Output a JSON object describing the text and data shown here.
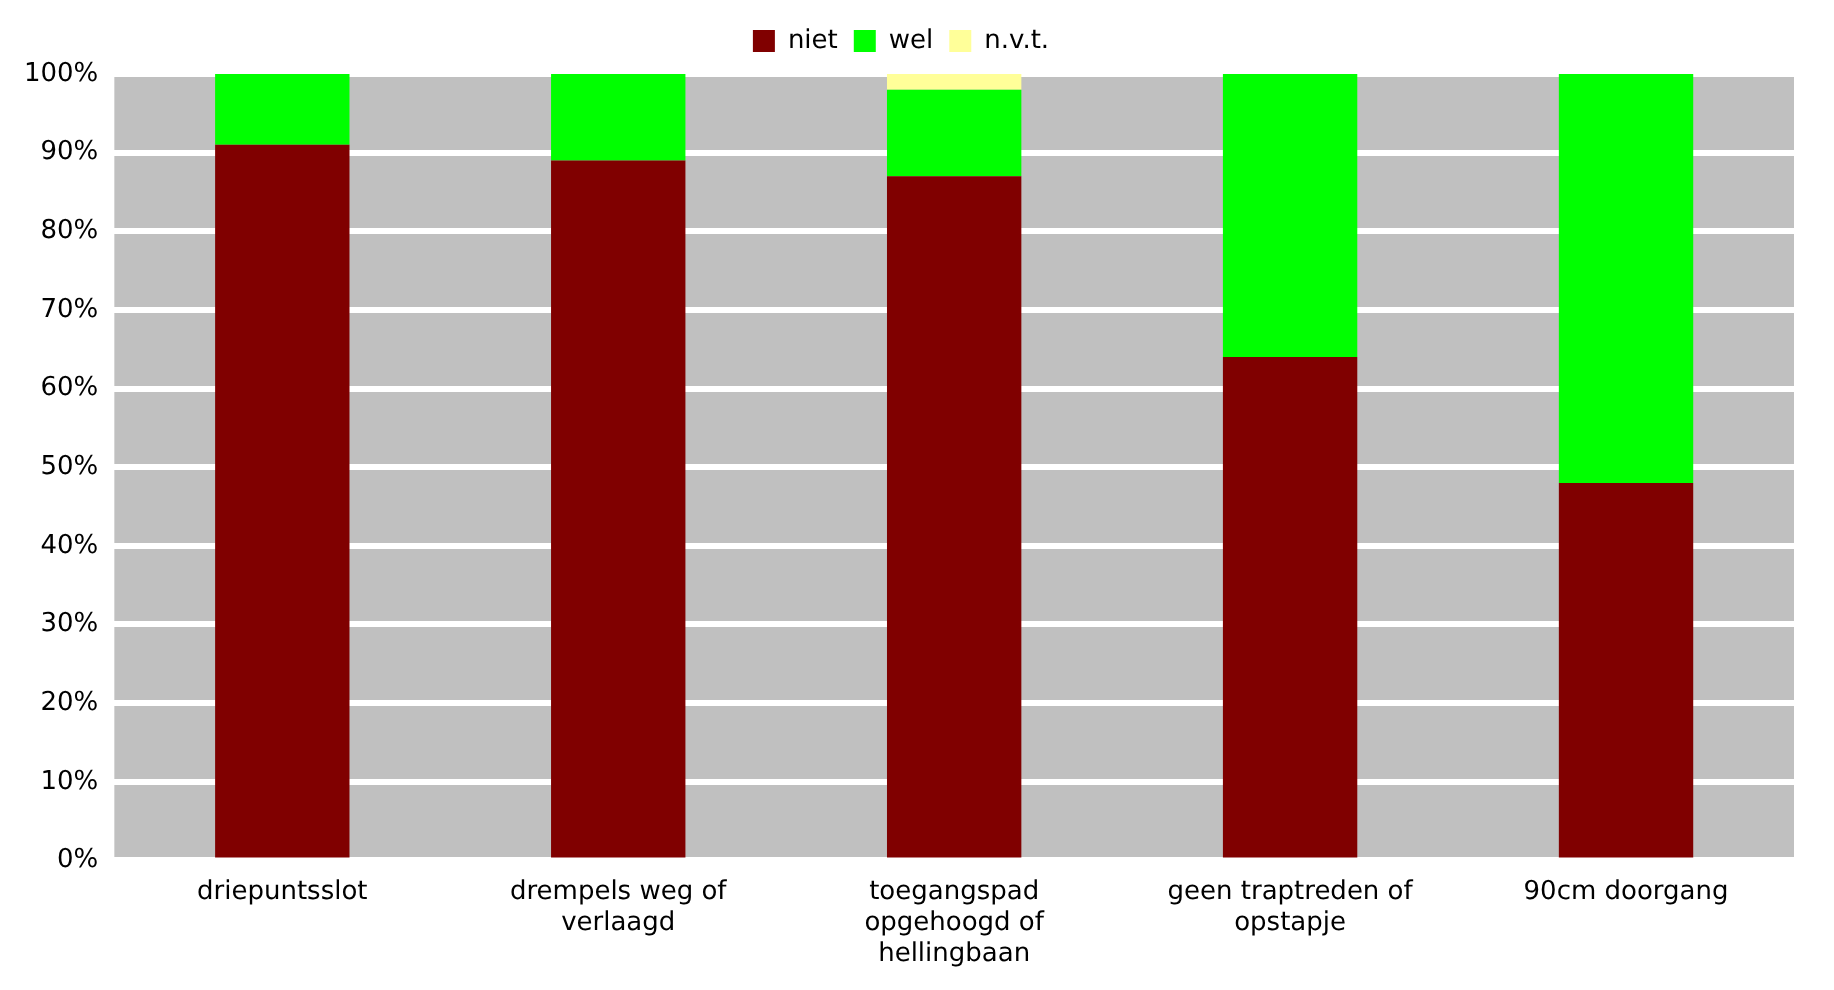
{
  "chart_data": {
    "type": "bar",
    "stacked": true,
    "categories": [
      "driepuntsslot",
      "drempels weg of verlaagd",
      "toegangspad opgehoogd of hellingbaan",
      "geen traptreden of opstapje",
      "90cm doorgang"
    ],
    "series": [
      {
        "name": "niet",
        "color": "#800000",
        "values": [
          91,
          89,
          87,
          64,
          48
        ]
      },
      {
        "name": "wel",
        "color": "#00ff00",
        "values": [
          9,
          11,
          11,
          36,
          52
        ]
      },
      {
        "name": "n.v.t.",
        "color": "#ffff99",
        "values": [
          0,
          0,
          2,
          0,
          0
        ]
      }
    ],
    "ylim": [
      0,
      100
    ],
    "yticks": [
      {
        "value": 0,
        "label": "0%"
      },
      {
        "value": 10,
        "label": "10%"
      },
      {
        "value": 20,
        "label": "20%"
      },
      {
        "value": 30,
        "label": "30%"
      },
      {
        "value": 40,
        "label": "40%"
      },
      {
        "value": 50,
        "label": "50%"
      },
      {
        "value": 60,
        "label": "60%"
      },
      {
        "value": 70,
        "label": "70%"
      },
      {
        "value": 80,
        "label": "80%"
      },
      {
        "value": 90,
        "label": "90%"
      },
      {
        "value": 100,
        "label": "100%"
      }
    ],
    "grid": "y",
    "legend": "top"
  }
}
